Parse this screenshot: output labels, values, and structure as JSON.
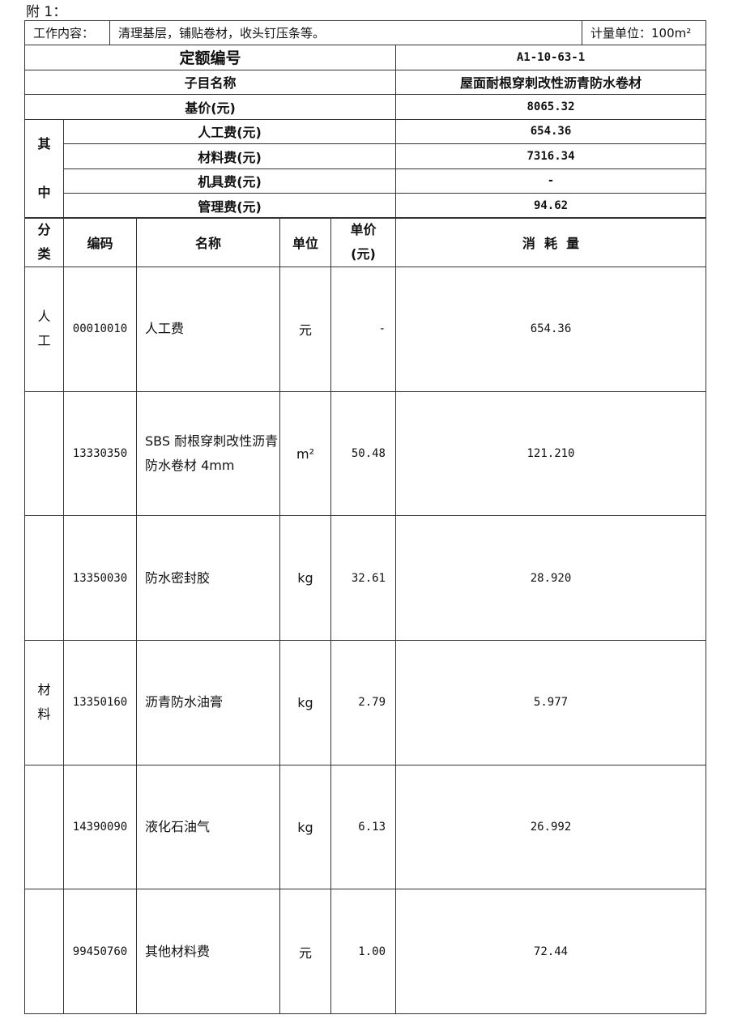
{
  "heading": "附 1：",
  "work": {
    "label": "工作内容：",
    "content": "清理基层，铺贴卷材，收头钉压条等。",
    "unit": "计量单位：100m²"
  },
  "summary": {
    "code_label": "定额编号",
    "code": "A1-10-63-1",
    "name_label": "子目名称",
    "name": "屋面耐根穿刺改性沥青防水卷材",
    "base_label": "基价(元)",
    "base": "8065.32",
    "among_1": "其",
    "among_2": "中",
    "labor_label": "人工费(元)",
    "labor": "654.36",
    "material_label": "材料费(元)",
    "material": "7316.34",
    "machine_label": "机具费(元)",
    "machine": "-",
    "mgmt_label": "管理费(元)",
    "mgmt": "94.62"
  },
  "columns": {
    "cat_1": "分",
    "cat_2": "类",
    "code": "编码",
    "name": "名称",
    "unit": "单位",
    "price_1": "单价",
    "price_2": "(元)",
    "qty": "消  耗  量"
  },
  "rows": [
    {
      "cat_1": "人",
      "cat_2": "工",
      "code": "00010010",
      "name": "人工费",
      "unit": "元",
      "price": "-",
      "qty": "654.36"
    },
    {
      "cat_1": "",
      "cat_2": "",
      "code": "13330350",
      "name": "SBS 耐根穿刺改性沥青防水卷材 4mm",
      "unit": "m²",
      "price": "50.48",
      "qty": "121.210"
    },
    {
      "cat_1": "",
      "cat_2": "",
      "code": "13350030",
      "name": "防水密封胶",
      "unit": "kg",
      "price": "32.61",
      "qty": "28.920"
    },
    {
      "cat_1": "材",
      "cat_2": "料",
      "code": "13350160",
      "name": "沥青防水油膏",
      "unit": "kg",
      "price": "2.79",
      "qty": "5.977"
    },
    {
      "cat_1": "",
      "cat_2": "",
      "code": "14390090",
      "name": "液化石油气",
      "unit": "kg",
      "price": "6.13",
      "qty": "26.992"
    },
    {
      "cat_1": "",
      "cat_2": "",
      "code": "99450760",
      "name": "其他材料费",
      "unit": "元",
      "price": "1.00",
      "qty": "72.44"
    }
  ]
}
